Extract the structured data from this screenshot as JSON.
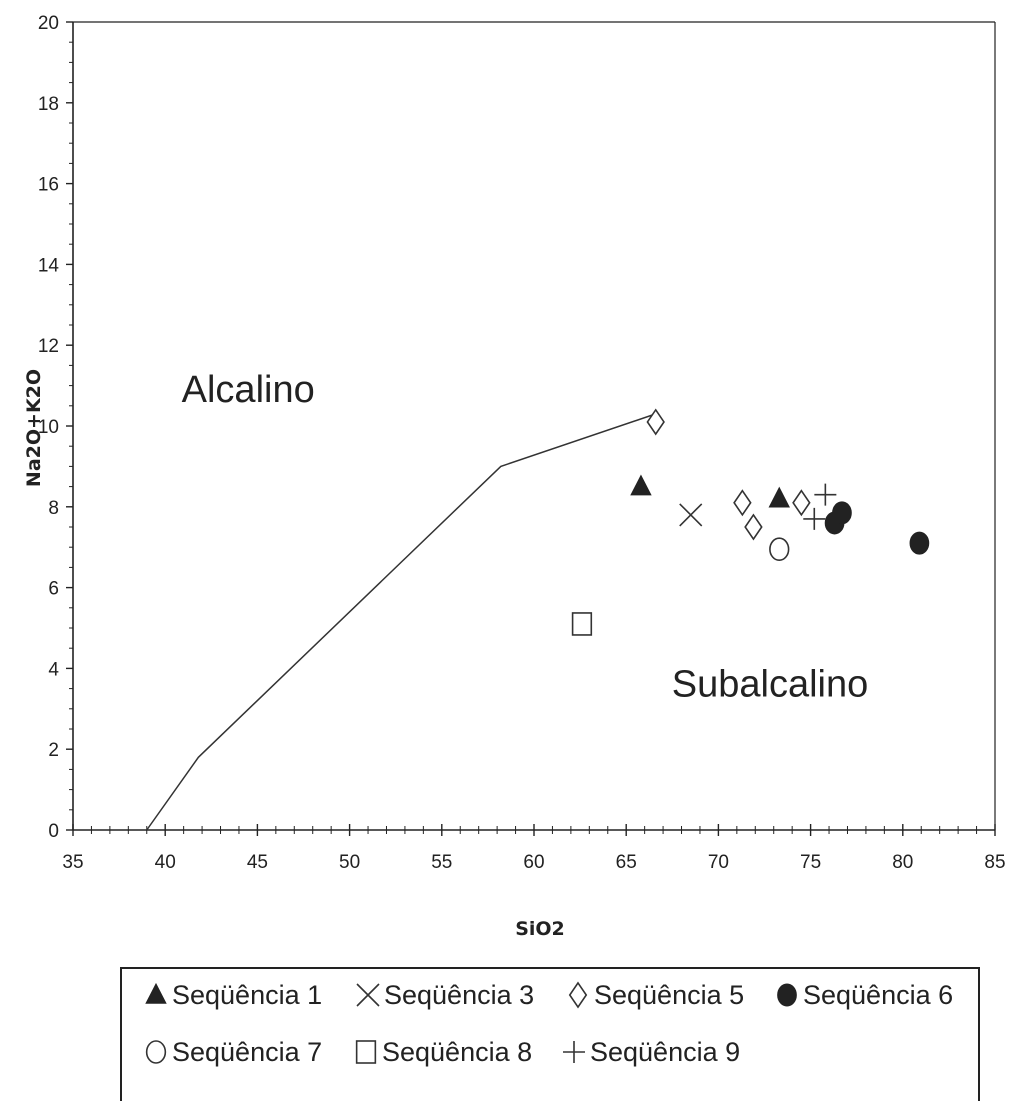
{
  "chart_data": {
    "type": "scatter",
    "title": "",
    "xlabel": "SiO2",
    "ylabel": "Na2O+K2O",
    "xlim": [
      35,
      85
    ],
    "ylim": [
      0,
      20
    ],
    "xticks": [
      "35",
      "40",
      "45",
      "50",
      "55",
      "60",
      "65",
      "70",
      "75",
      "80",
      "85"
    ],
    "yticks": [
      "0",
      "2",
      "4",
      "6",
      "8",
      "10",
      "12",
      "14",
      "16",
      "18",
      "20"
    ],
    "grid": false,
    "boundary": {
      "x": [
        39,
        41.8,
        58.2,
        66.6
      ],
      "y": [
        0,
        1.8,
        9.0,
        10.3
      ]
    },
    "regions": [
      {
        "text": "Alcalino",
        "x": 44.5,
        "y": 10.6
      },
      {
        "text": "Subalcalino",
        "x": 72.8,
        "y": 3.3
      }
    ],
    "series": [
      {
        "name": "Seqüência 1",
        "marker": "triangle-filled",
        "x": [
          65.8,
          73.3
        ],
        "y": [
          8.5,
          8.2
        ]
      },
      {
        "name": "Seqüência 3",
        "marker": "x",
        "x": [
          68.5
        ],
        "y": [
          7.8
        ]
      },
      {
        "name": "Seqüência 5",
        "marker": "diamond-open",
        "x": [
          66.6,
          71.3,
          71.9,
          74.5
        ],
        "y": [
          10.1,
          8.1,
          7.5,
          8.1
        ]
      },
      {
        "name": "Seqüência 6",
        "marker": "circle-filled",
        "x": [
          76.3,
          76.7,
          80.9
        ],
        "y": [
          7.6,
          7.85,
          7.1
        ]
      },
      {
        "name": "Seqüência 7",
        "marker": "circle-open",
        "x": [
          73.3
        ],
        "y": [
          6.95
        ]
      },
      {
        "name": "Seqüência 8",
        "marker": "square-open",
        "x": [
          62.6
        ],
        "y": [
          5.1
        ]
      },
      {
        "name": "Seqüência 9",
        "marker": "plus",
        "x": [
          75.8,
          75.2
        ],
        "y": [
          8.3,
          7.7
        ]
      }
    ],
    "legend": {
      "placement": "bottom",
      "entries": [
        "Seqüência 1",
        "Seqüência 3",
        "Seqüência 5",
        "Seqüência 6",
        "Seqüência 7",
        "Seqüência 8",
        "Seqüência 9"
      ]
    }
  }
}
